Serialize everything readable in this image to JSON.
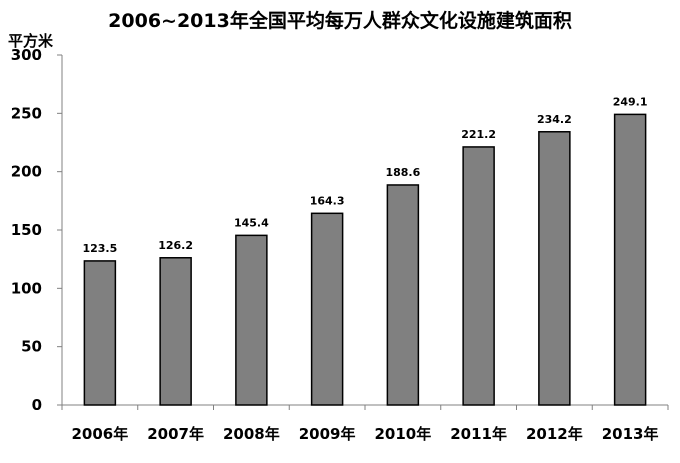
{
  "chart_data": {
    "type": "bar",
    "title": "2006~2013年全国平均每万人群众文化设施建筑面积",
    "ylabel": "平方米",
    "xlabel": "",
    "categories": [
      "2006年",
      "2007年",
      "2008年",
      "2009年",
      "2010年",
      "2011年",
      "2012年",
      "2013年"
    ],
    "values": [
      123.5,
      126.2,
      145.4,
      164.3,
      188.6,
      221.2,
      234.2,
      249.1
    ],
    "data_labels": [
      "123.5",
      "126.2",
      "145.4",
      "164.3",
      "188.6",
      "221.2",
      "234.2",
      "249.1"
    ],
    "ylim": [
      0,
      300
    ],
    "yticks": [
      0,
      50,
      100,
      150,
      200,
      250,
      300
    ],
    "grid": false,
    "legend": "none",
    "colors": {
      "bar_fill": "#808080",
      "bar_stroke": "#000000",
      "axis": "#808080"
    }
  }
}
